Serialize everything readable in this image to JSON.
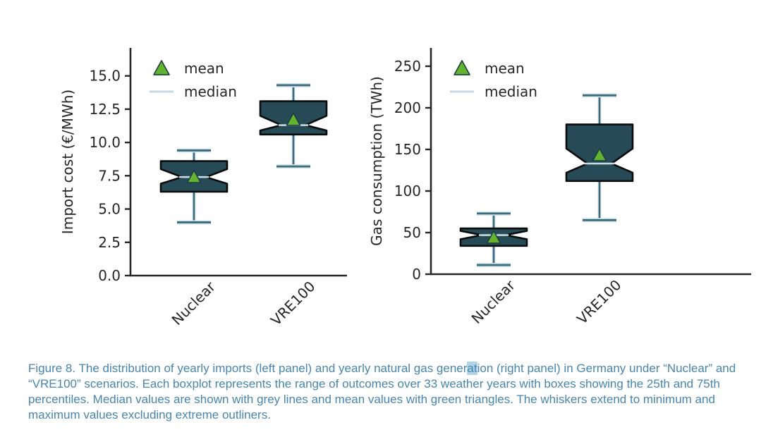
{
  "caption": {
    "part1": "Figure 8. The distribution of yearly imports (left panel) and yearly natural gas gener",
    "highlight": "at",
    "part2": "ion (right panel) in Germany under “Nuclear” and “VRE100” scenarios. Each boxplot represents the range of outcomes over 33 weather years with boxes showing the 25th and 75th percentiles. Median values are shown with grey lines and mean values with green triangles. The whiskers extend to minimum and maximum values excluding extreme outliners."
  },
  "style": {
    "box_fill": "#274a57",
    "box_edge": "#0b0b0b",
    "whisker": "#3c6a7d",
    "halo": "#d3e3e9",
    "median": "#c4dae0",
    "mean_fill": "#62b32e",
    "mean_edge": "#1f3b45",
    "axis": "#262626",
    "caption_color": "#4886ae",
    "highlight_bg": "#b0d3e8"
  },
  "chart_data": [
    {
      "type": "boxplot",
      "ylabel": "Import cost (€/MWh)",
      "categories": [
        "Nuclear",
        "VRE100"
      ],
      "ylim": [
        0,
        17.1
      ],
      "yticks": [
        0,
        2.5,
        5,
        7.5,
        10,
        12.5,
        15
      ],
      "ytick_labels": [
        "0.0",
        "2.5",
        "5.0",
        "7.5",
        "10.0",
        "12.5",
        "15.0"
      ],
      "legend": {
        "mean_label": "mean",
        "median_label": "median"
      },
      "series": [
        {
          "name": "Nuclear",
          "min": 4.0,
          "q1": 6.3,
          "median": 7.4,
          "q3": 8.6,
          "max": 9.4,
          "mean": 7.4,
          "notch_lo": 6.9,
          "notch_hi": 8.0
        },
        {
          "name": "VRE100",
          "min": 8.2,
          "q1": 10.6,
          "median": 11.3,
          "q3": 13.1,
          "max": 14.3,
          "mean": 11.7,
          "notch_lo": 10.9,
          "notch_hi": 12.0
        }
      ]
    },
    {
      "type": "boxplot",
      "ylabel": "Gas consumption (TWh)",
      "categories": [
        "Nuclear",
        "VRE100"
      ],
      "ylim": [
        0,
        272
      ],
      "yticks": [
        0,
        50,
        100,
        150,
        200,
        250
      ],
      "ytick_labels": [
        "0",
        "50",
        "100",
        "150",
        "200",
        "250"
      ],
      "legend": {
        "mean_label": "mean",
        "median_label": "median"
      },
      "series": [
        {
          "name": "Nuclear",
          "min": 11,
          "q1": 34,
          "median": 47,
          "q3": 55,
          "max": 73,
          "mean": 44,
          "notch_lo": 42,
          "notch_hi": 52
        },
        {
          "name": "VRE100",
          "min": 65,
          "q1": 112,
          "median": 133,
          "q3": 180,
          "max": 215,
          "mean": 143,
          "notch_lo": 122,
          "notch_hi": 151
        }
      ]
    }
  ]
}
